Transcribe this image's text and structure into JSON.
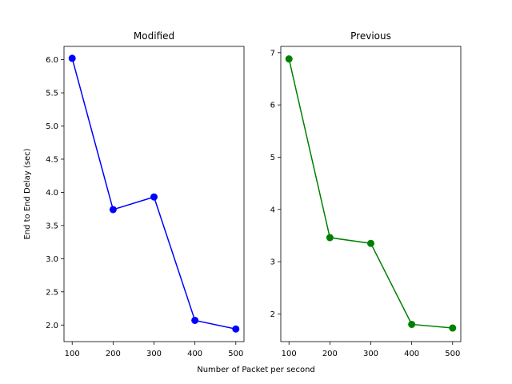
{
  "figure": {
    "shared_xlabel": "Number of Packet per second"
  },
  "chart_data": [
    {
      "type": "line",
      "title": "Modified",
      "xlabel": "",
      "ylabel": "End to End Delay (sec)",
      "x": [
        100,
        200,
        300,
        400,
        500
      ],
      "series": [
        {
          "values": [
            6.02,
            3.74,
            3.93,
            2.07,
            1.94
          ],
          "color": "#0000ff",
          "marker": "circle"
        }
      ],
      "xlim": [
        80,
        520
      ],
      "ylim": [
        1.75,
        6.2
      ],
      "xticks": [
        100,
        200,
        300,
        400,
        500
      ],
      "yticks": [
        2.0,
        2.5,
        3.0,
        3.5,
        4.0,
        4.5,
        5.0,
        5.5,
        6.0
      ],
      "ytick_labels": [
        "2.0",
        "2.5",
        "3.0",
        "3.5",
        "4.0",
        "4.5",
        "5.0",
        "5.5",
        "6.0"
      ],
      "grid": false
    },
    {
      "type": "line",
      "title": "Previous",
      "xlabel": "",
      "ylabel": "",
      "x": [
        100,
        200,
        300,
        400,
        500
      ],
      "series": [
        {
          "values": [
            6.88,
            3.46,
            3.35,
            1.8,
            1.73
          ],
          "color": "#008000",
          "marker": "circle"
        }
      ],
      "xlim": [
        80,
        520
      ],
      "ylim": [
        1.47,
        7.12
      ],
      "xticks": [
        100,
        200,
        300,
        400,
        500
      ],
      "yticks": [
        2,
        3,
        4,
        5,
        6,
        7
      ],
      "ytick_labels": [
        "2",
        "3",
        "4",
        "5",
        "6",
        "7"
      ],
      "grid": false
    }
  ]
}
